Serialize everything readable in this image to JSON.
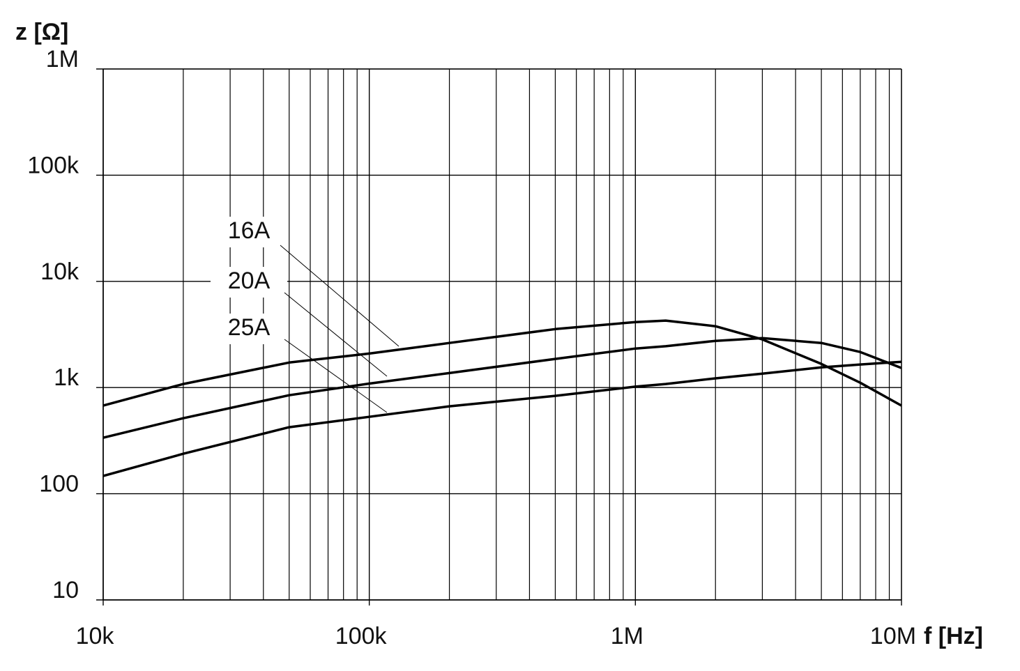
{
  "chart_data": {
    "type": "line",
    "y_label": "z [Ω]",
    "x_label": "f [Hz]",
    "log_x": true,
    "log_y": true,
    "grid": true,
    "x": [
      10000,
      20000,
      50000,
      100000,
      200000,
      500000,
      1000000,
      1300000,
      2000000,
      3000000,
      5000000,
      7000000,
      10000000
    ],
    "series": [
      {
        "name": "16A",
        "color": "#000000",
        "values": [
          676,
          1080,
          1720,
          2090,
          2630,
          3550,
          4140,
          4270,
          3780,
          2840,
          1670,
          1110,
          676
        ]
      },
      {
        "name": "20A",
        "color": "#000000",
        "values": [
          337,
          514,
          847,
          1090,
          1370,
          1860,
          2330,
          2450,
          2750,
          2920,
          2630,
          2160,
          1530
        ]
      },
      {
        "name": "25A",
        "color": "#000000",
        "values": [
          147,
          238,
          423,
          530,
          666,
          835,
          1020,
          1080,
          1220,
          1350,
          1550,
          1650,
          1750
        ]
      }
    ],
    "xlim": [
      10000,
      10000000
    ],
    "ylim": [
      10,
      1000000
    ],
    "xticks": [
      {
        "value": 10000,
        "label": "10k"
      },
      {
        "value": 100000,
        "label": "100k"
      },
      {
        "value": 1000000,
        "label": "1M"
      },
      {
        "value": 10000000,
        "label": "10M"
      }
    ],
    "yticks": [
      10,
      100,
      {
        "value": 1000,
        "label": "1k"
      },
      {
        "value": 10000,
        "label": "10k"
      },
      {
        "value": 100000,
        "label": "100k"
      },
      {
        "value": 1000000,
        "label": "1M"
      }
    ],
    "xminorticks": [
      20000,
      30000,
      40000,
      50000,
      60000,
      70000,
      80000,
      90000,
      200000,
      300000,
      400000,
      500000,
      600000,
      700000,
      800000,
      900000,
      2000000,
      3000000,
      4000000,
      5000000,
      6000000,
      7000000,
      8000000,
      9000000
    ]
  }
}
